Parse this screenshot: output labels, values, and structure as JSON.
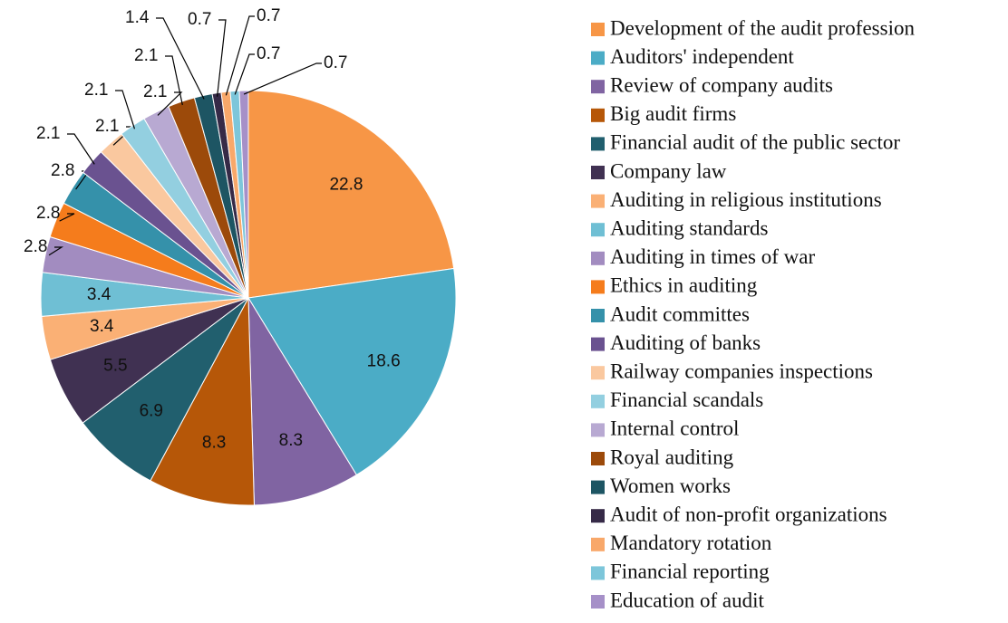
{
  "chart_data": {
    "type": "pie",
    "categories": [
      "Development of the audit profession",
      "Auditors' independent",
      "Review of company audits",
      "Big audit firms",
      "Financial audit of the public sector",
      "Company law",
      "Auditing in religious institutions",
      "Auditing standards",
      "Auditing in times of war",
      "Ethics in auditing",
      "Audit committes",
      "Auditing of banks",
      "Railway companies inspections",
      "Financial scandals",
      "Internal control",
      "Royal auditing",
      "Women works",
      "Audit of non-profit organizations",
      "Mandatory rotation",
      "Financial reporting",
      "Education of audit"
    ],
    "values": [
      22.8,
      18.6,
      8.3,
      8.3,
      6.9,
      5.5,
      3.4,
      3.4,
      2.8,
      2.8,
      2.8,
      2.1,
      2.1,
      2.1,
      2.1,
      2.1,
      1.4,
      0.7,
      0.7,
      0.7,
      0.7
    ],
    "colors": [
      "#f79646",
      "#4bacc6",
      "#8064a2",
      "#b65708",
      "#215f6e",
      "#403152",
      "#fab075",
      "#6fbfd4",
      "#a28cc0",
      "#f57c1c",
      "#3591aa",
      "#6a5290",
      "#fac89f",
      "#93cfe0",
      "#b8a9d2",
      "#9c4a0a",
      "#1d5563",
      "#362a47",
      "#f8a86a",
      "#7dc6da",
      "#a690c8"
    ],
    "legend": "right"
  }
}
